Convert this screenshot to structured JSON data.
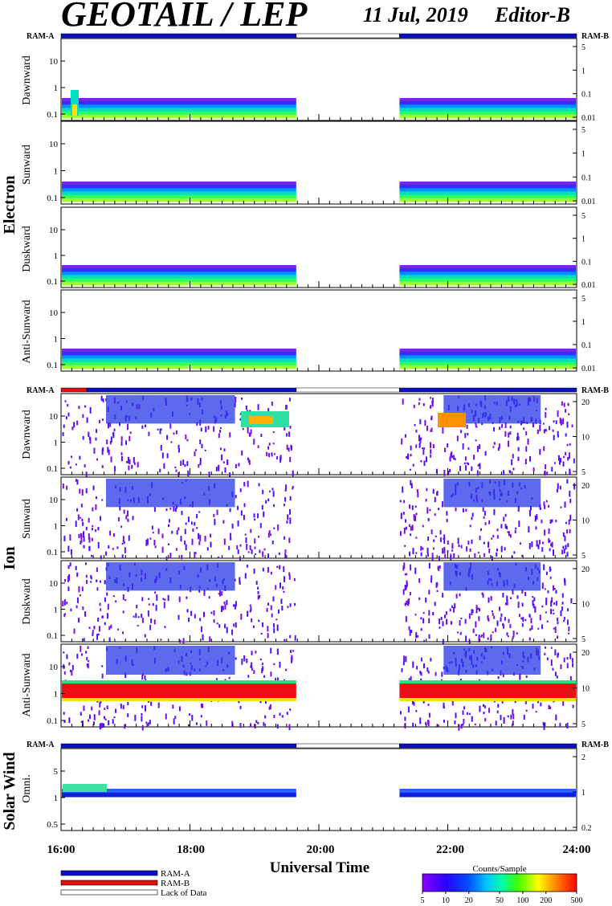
{
  "header": {
    "title": "GEOTAIL / LEP",
    "date": "11 Jul, 2019",
    "editor": "Editor-B"
  },
  "groups": [
    {
      "name": "Electron"
    },
    {
      "name": "Ion"
    },
    {
      "name": "Solar Wind"
    }
  ],
  "ram_labels": {
    "left": "RAM-A",
    "right": "RAM-B"
  },
  "x_axis": {
    "label": "Universal Time",
    "ticks": [
      "16:00",
      "18:00",
      "20:00",
      "22:00",
      "24:00"
    ]
  },
  "chart_data": {
    "type": "heatmap",
    "x_range_hours": [
      16,
      24
    ],
    "data_gaps_hours": [
      [
        19.65,
        21.25
      ]
    ],
    "colorbar": {
      "label": "Counts/Sample",
      "ticks": [
        "5",
        "10",
        "20",
        "50",
        "100",
        "200",
        "500"
      ],
      "range": [
        5,
        500
      ],
      "scale": "log"
    },
    "ram_coverage": [
      {
        "panel": "Electron",
        "segments": [
          {
            "from": 16.0,
            "to": 19.65,
            "mode": "RAM-A"
          },
          {
            "from": 19.65,
            "to": 21.25,
            "mode": "Lack of Data"
          },
          {
            "from": 21.25,
            "to": 24.0,
            "mode": "RAM-A"
          }
        ]
      },
      {
        "panel": "Ion",
        "segments": [
          {
            "from": 16.0,
            "to": 16.4,
            "mode": "RAM-B"
          },
          {
            "from": 16.4,
            "to": 19.65,
            "mode": "RAM-A"
          },
          {
            "from": 19.65,
            "to": 21.25,
            "mode": "Lack of Data"
          },
          {
            "from": 21.25,
            "to": 24.0,
            "mode": "RAM-A"
          }
        ]
      },
      {
        "panel": "Solar Wind",
        "segments": [
          {
            "from": 16.0,
            "to": 19.65,
            "mode": "RAM-A"
          },
          {
            "from": 19.65,
            "to": 21.25,
            "mode": "Lack of Data"
          },
          {
            "from": 21.25,
            "to": 24.0,
            "mode": "RAM-A"
          }
        ]
      }
    ],
    "panels": [
      {
        "group": "Electron",
        "name": "Dawnward",
        "left_ticks": [
          "10",
          "1",
          "0.1"
        ],
        "right_ticks": [
          "5",
          "1",
          "0.1",
          "0.01"
        ]
      },
      {
        "group": "Electron",
        "name": "Sunward",
        "left_ticks": [
          "10",
          "1",
          "0.1"
        ],
        "right_ticks": [
          "5",
          "1",
          "0.1",
          "0.01"
        ]
      },
      {
        "group": "Electron",
        "name": "Duskward",
        "left_ticks": [
          "10",
          "1",
          "0.1"
        ],
        "right_ticks": [
          "5",
          "1",
          "0.1",
          "0.01"
        ]
      },
      {
        "group": "Electron",
        "name": "Anti-Sunward",
        "left_ticks": [
          "10",
          "1",
          "0.1"
        ],
        "right_ticks": [
          "5",
          "1",
          "0.1",
          "0.01"
        ]
      },
      {
        "group": "Ion",
        "name": "Dawnward",
        "left_ticks": [
          "10",
          "1",
          "0.1"
        ],
        "right_ticks": [
          "20",
          "10",
          "5"
        ]
      },
      {
        "group": "Ion",
        "name": "Sunward",
        "left_ticks": [
          "10",
          "1",
          "0.1"
        ],
        "right_ticks": [
          "20",
          "10",
          "5"
        ]
      },
      {
        "group": "Ion",
        "name": "Duskward",
        "left_ticks": [
          "10",
          "1",
          "0.1"
        ],
        "right_ticks": [
          "20",
          "10",
          "5"
        ]
      },
      {
        "group": "Ion",
        "name": "Anti-Sunward",
        "left_ticks": [
          "10",
          "1",
          "0.1"
        ],
        "right_ticks": [
          "20",
          "10",
          "5"
        ]
      },
      {
        "group": "Solar Wind",
        "name": "Omni.",
        "left_ticks": [
          "5",
          "1",
          "0.5"
        ],
        "right_ticks": [
          "2",
          "1",
          "0.2"
        ]
      }
    ]
  },
  "legend": {
    "items": [
      {
        "label": "RAM-A",
        "color": "#0a10c8"
      },
      {
        "label": "RAM-B",
        "color": "#e01010"
      },
      {
        "label": "Lack of Data",
        "color": "#ffffff"
      }
    ]
  }
}
